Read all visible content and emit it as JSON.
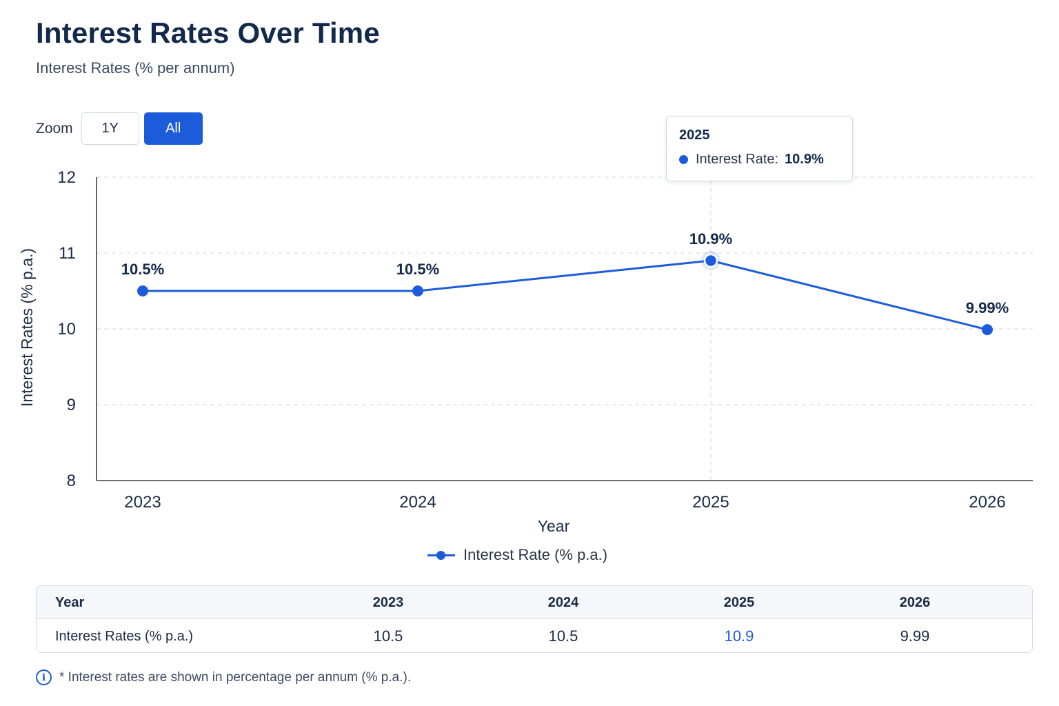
{
  "title": "Interest Rates Over Time",
  "subtitle": "Interest Rates (% per annum)",
  "zoom": {
    "label": "Zoom",
    "options": [
      "1Y",
      "All"
    ],
    "selected": "All"
  },
  "tooltip": {
    "year": "2025",
    "label": "Interest Rate:",
    "value": "10.9%"
  },
  "legend": {
    "label": "Interest Rate (% p.a.)"
  },
  "colors": {
    "accent": "#1c5bd9",
    "title": "#13294b",
    "grid": "#d9dde3"
  },
  "chart_data": {
    "type": "line",
    "title": "Interest Rates Over Time",
    "subtitle": "Interest Rates (% per annum)",
    "xlabel": "Year",
    "ylabel": "Interest Rates (% p.a.)",
    "categories": [
      "2023",
      "2024",
      "2025",
      "2026"
    ],
    "series": [
      {
        "name": "Interest Rate (% p.a.)",
        "values": [
          10.5,
          10.5,
          10.9,
          9.99
        ],
        "labels": [
          "10.5%",
          "10.5%",
          "10.9%",
          "9.99%"
        ]
      }
    ],
    "ylim": [
      8,
      12
    ],
    "yticks": [
      8,
      9,
      10,
      11,
      12
    ],
    "grid": true,
    "highlighted_index": 2,
    "legend_position": "bottom"
  },
  "table": {
    "headers": [
      "Year",
      "2023",
      "2024",
      "2025",
      "2026"
    ],
    "row_label": "Interest Rates (% p.a.)",
    "values": [
      "10.5",
      "10.5",
      "10.9",
      "9.99"
    ]
  },
  "footnote": "* Interest rates are shown in percentage per annum (% p.a.).",
  "icons": {
    "info": "info-icon"
  }
}
